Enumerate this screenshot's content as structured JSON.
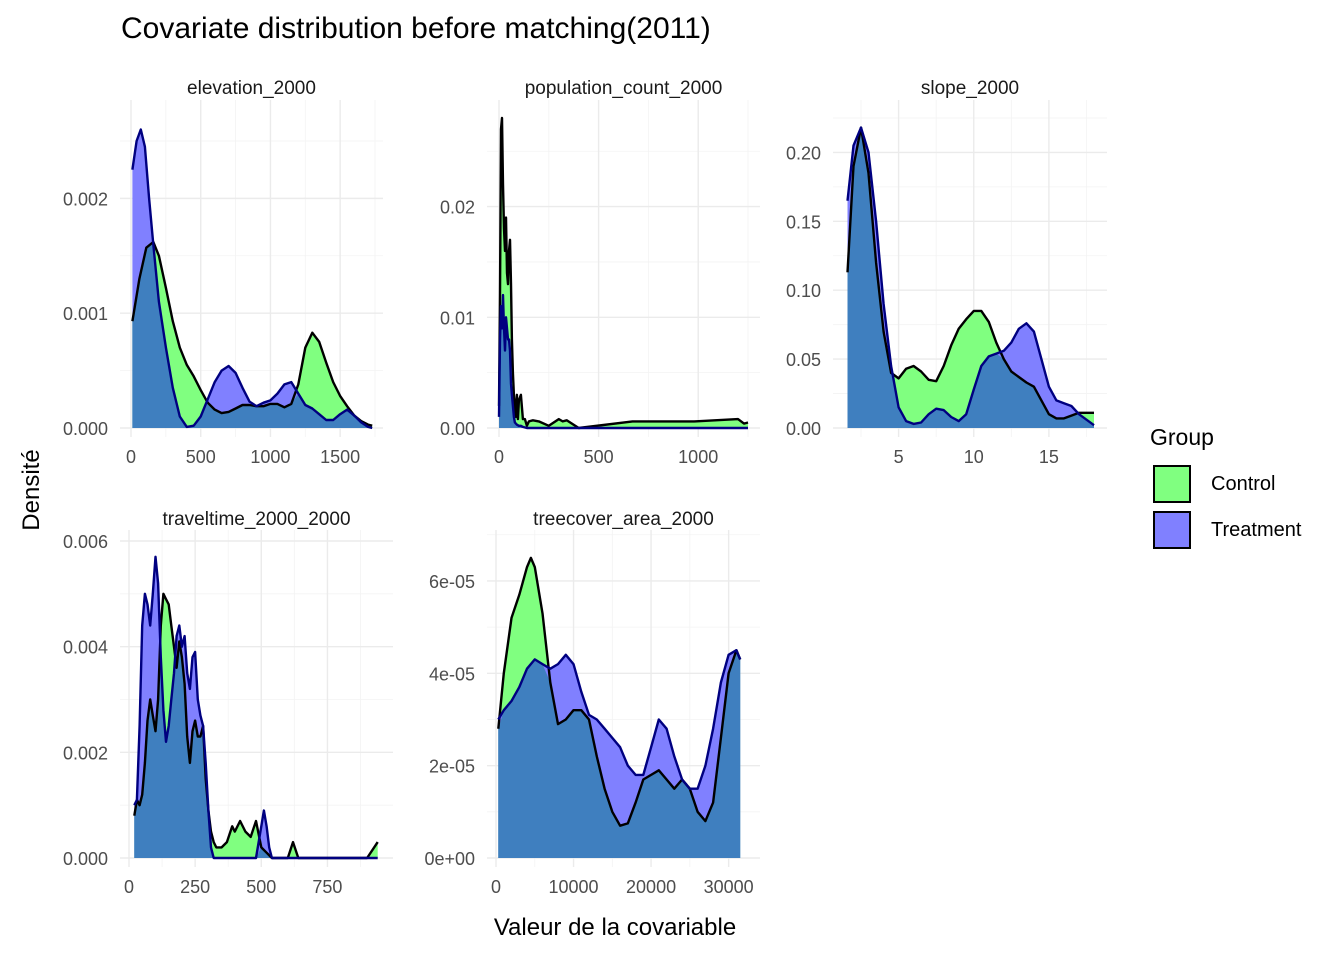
{
  "chart_data": {
    "type": "area",
    "title": "Covariate distribution before matching(2011)",
    "xlabel": "Valeur de la covariable",
    "ylabel": "Densité",
    "legend": {
      "title": "Group",
      "placement": "right",
      "entries": [
        {
          "name": "Control",
          "color": "#80ff80"
        },
        {
          "name": "Treatment",
          "color": "#8080ff"
        }
      ]
    },
    "overlap_color": "#3f7fbf",
    "grid": true,
    "panels": [
      {
        "name": "elevation_2000",
        "xlim": [
          0,
          1750
        ],
        "ylim": [
          0,
          0.0027
        ],
        "xticks": [
          0,
          500,
          1000,
          1500
        ],
        "xtick_labels": [
          "0",
          "500",
          "1000",
          "1500"
        ],
        "yticks": [
          0,
          0.001,
          0.002
        ],
        "ytick_labels": [
          "0.000",
          "0.001",
          "0.002"
        ],
        "series": [
          {
            "name": "Control",
            "x": [
              10,
              60,
              110,
              160,
              200,
              250,
              300,
              350,
              400,
              450,
              500,
              550,
              600,
              650,
              700,
              750,
              800,
              850,
              900,
              950,
              1000,
              1050,
              1100,
              1150,
              1200,
              1250,
              1300,
              1350,
              1400,
              1450,
              1500,
              1550,
              1600,
              1650,
              1700,
              1730
            ],
            "y": [
              0.00093,
              0.0013,
              0.00157,
              0.00162,
              0.0015,
              0.00122,
              0.00093,
              0.0007,
              0.00055,
              0.00045,
              0.00033,
              0.00022,
              0.00016,
              0.00013,
              0.00014,
              0.00017,
              0.0002,
              0.0002,
              0.00019,
              0.00019,
              0.00021,
              0.00021,
              0.00018,
              0.00021,
              0.00038,
              0.0007,
              0.00083,
              0.00075,
              0.00057,
              0.0004,
              0.00028,
              0.00019,
              0.00011,
              6e-05,
              3e-05,
              2e-05
            ]
          },
          {
            "name": "Treatment",
            "x": [
              10,
              40,
              70,
              100,
              130,
              160,
              200,
              250,
              300,
              350,
              400,
              450,
              500,
              550,
              600,
              650,
              700,
              750,
              800,
              850,
              900,
              950,
              1000,
              1050,
              1100,
              1150,
              1200,
              1250,
              1300,
              1350,
              1400,
              1450,
              1500,
              1550,
              1600,
              1650,
              1700,
              1730
            ],
            "y": [
              0.00225,
              0.0025,
              0.0026,
              0.00245,
              0.002,
              0.0016,
              0.0011,
              0.0007,
              0.00035,
              0.0001,
              1e-05,
              2e-05,
              0.0001,
              0.00025,
              0.0004,
              0.0005,
              0.00054,
              0.00048,
              0.00035,
              0.00023,
              0.00019,
              0.00022,
              0.00024,
              0.0003,
              0.00038,
              0.0004,
              0.0003,
              0.0002,
              0.00017,
              0.00012,
              7e-05,
              7e-05,
              0.00012,
              0.00016,
              0.00011,
              5e-05,
              1e-05,
              0.0
            ]
          }
        ]
      },
      {
        "name": "population_count_2000",
        "xlim": [
          0,
          1260
        ],
        "ylim": [
          0,
          0.028
        ],
        "xticks": [
          0,
          500,
          1000
        ],
        "xtick_labels": [
          "0",
          "500",
          "1000"
        ],
        "yticks": [
          0,
          0.01,
          0.02
        ],
        "ytick_labels": [
          "0.00",
          "0.01",
          "0.02"
        ],
        "series": [
          {
            "name": "Control",
            "x": [
              0,
              5,
              10,
              15,
              20,
              25,
              30,
              35,
              40,
              45,
              50,
              55,
              60,
              65,
              70,
              75,
              80,
              85,
              90,
              95,
              100,
              110,
              120,
              130,
              140,
              150,
              170,
              200,
              250,
              300,
              320,
              340,
              400,
              670,
              980,
              1200,
              1230,
              1250
            ],
            "y": [
              0.002,
              0.012,
              0.027,
              0.028,
              0.022,
              0.018,
              0.016,
              0.019,
              0.014,
              0.013,
              0.016,
              0.017,
              0.013,
              0.008,
              0.005,
              0.003,
              0.002,
              0.001,
              0.003,
              0.0008,
              0.0025,
              0.003,
              0.0008,
              0.0008,
              0.0002,
              0.0006,
              0.0007,
              0.0006,
              0.0002,
              0.0008,
              0.0006,
              0.0007,
              0.0,
              0.0006,
              0.0006,
              0.0008,
              0.0004,
              0.0005
            ]
          },
          {
            "name": "Treatment",
            "x": [
              0,
              5,
              10,
              15,
              20,
              25,
              30,
              35,
              40,
              45,
              50,
              55,
              60,
              65,
              70,
              75,
              80,
              90,
              100,
              110,
              120,
              140,
              200,
              400,
              1250
            ],
            "y": [
              0.001,
              0.008,
              0.011,
              0.009,
              0.012,
              0.009,
              0.007,
              0.01,
              0.009,
              0.008,
              0.008,
              0.007,
              0.004,
              0.003,
              0.002,
              0.001,
              0.0005,
              0.0003,
              0.0002,
              0.0002,
              0.0001,
              0.0,
              0.0,
              0.0,
              0.0
            ]
          }
        ]
      },
      {
        "name": "slope_2000",
        "xlim": [
          1.5,
          18.2
        ],
        "ylim": [
          0,
          0.225
        ],
        "xticks": [
          5,
          10,
          15
        ],
        "xtick_labels": [
          "5",
          "10",
          "15"
        ],
        "yticks": [
          0,
          0.05,
          0.1,
          0.15,
          0.2
        ],
        "ytick_labels": [
          "0.00",
          "0.05",
          "0.10",
          "0.15",
          "0.20"
        ],
        "series": [
          {
            "name": "Control",
            "x": [
              1.6,
              2.0,
              2.5,
              3.0,
              3.5,
              4.0,
              4.5,
              5.0,
              5.5,
              6.0,
              6.5,
              7.0,
              7.5,
              8.0,
              8.5,
              9.0,
              9.5,
              10.0,
              10.5,
              11.0,
              11.5,
              12.0,
              12.5,
              13.0,
              13.5,
              14.0,
              14.5,
              15.0,
              15.5,
              16.0,
              16.5,
              17.0,
              17.5,
              18.0
            ],
            "y": [
              0.113,
              0.19,
              0.218,
              0.185,
              0.12,
              0.07,
              0.04,
              0.036,
              0.043,
              0.045,
              0.041,
              0.035,
              0.034,
              0.045,
              0.06,
              0.072,
              0.079,
              0.085,
              0.085,
              0.077,
              0.062,
              0.05,
              0.041,
              0.037,
              0.033,
              0.03,
              0.02,
              0.01,
              0.007,
              0.007,
              0.009,
              0.011,
              0.011,
              0.011
            ]
          },
          {
            "name": "Treatment",
            "x": [
              1.6,
              2.0,
              2.5,
              3.0,
              3.5,
              4.0,
              4.5,
              5.0,
              5.5,
              6.0,
              6.5,
              7.0,
              7.5,
              8.0,
              8.5,
              9.0,
              9.5,
              10.0,
              10.5,
              11.0,
              11.5,
              12.0,
              12.5,
              13.0,
              13.5,
              14.0,
              14.5,
              15.0,
              15.5,
              16.0,
              16.5,
              17.0,
              17.5,
              18.0
            ],
            "y": [
              0.165,
              0.205,
              0.218,
              0.2,
              0.15,
              0.09,
              0.045,
              0.015,
              0.005,
              0.003,
              0.004,
              0.01,
              0.014,
              0.013,
              0.008,
              0.005,
              0.01,
              0.028,
              0.045,
              0.052,
              0.054,
              0.056,
              0.062,
              0.072,
              0.076,
              0.07,
              0.05,
              0.03,
              0.02,
              0.018,
              0.016,
              0.01,
              0.006,
              0.002
            ]
          }
        ]
      },
      {
        "name": "traveltime_2000_2000",
        "xlim": [
          0,
          960
        ],
        "ylim": [
          0,
          0.006
        ],
        "xticks": [
          0,
          250,
          500,
          750
        ],
        "xtick_labels": [
          "0",
          "250",
          "500",
          "750"
        ],
        "yticks": [
          0,
          0.002,
          0.004,
          0.006
        ],
        "ytick_labels": [
          "0.000",
          "0.002",
          "0.004",
          "0.006"
        ],
        "series": [
          {
            "name": "Control",
            "x": [
              20,
              30,
              40,
              50,
              60,
              70,
              80,
              90,
              100,
              110,
              120,
              130,
              140,
              150,
              160,
              170,
              180,
              190,
              200,
              210,
              220,
              230,
              240,
              250,
              260,
              270,
              280,
              290,
              300,
              310,
              320,
              330,
              350,
              370,
              390,
              400,
              420,
              440,
              460,
              480,
              500,
              520,
              540,
              560,
              600,
              620,
              640,
              700,
              900,
              940
            ],
            "y": [
              0.0008,
              0.0011,
              0.001,
              0.0012,
              0.0018,
              0.0026,
              0.003,
              0.0027,
              0.0024,
              0.003,
              0.0044,
              0.005,
              0.0049,
              0.0048,
              0.0044,
              0.004,
              0.0036,
              0.0041,
              0.0038,
              0.0033,
              0.0023,
              0.0018,
              0.0024,
              0.0026,
              0.0023,
              0.0023,
              0.0025,
              0.0015,
              0.0009,
              0.0005,
              0.0003,
              0.0002,
              0.0002,
              0.0003,
              0.0006,
              0.0005,
              0.0007,
              0.0005,
              0.0004,
              0.0007,
              0.0002,
              0.0001,
              0.0,
              0.0,
              0.0,
              0.0003,
              0.0,
              0.0,
              0.0,
              0.0003
            ]
          },
          {
            "name": "Treatment",
            "x": [
              20,
              30,
              40,
              50,
              60,
              70,
              80,
              90,
              100,
              110,
              120,
              130,
              140,
              150,
              160,
              170,
              180,
              190,
              200,
              210,
              220,
              230,
              240,
              250,
              260,
              270,
              280,
              290,
              300,
              310,
              320,
              340,
              360,
              400,
              450,
              480,
              500,
              510,
              520,
              530,
              540,
              560,
              600,
              940
            ],
            "y": [
              0.001,
              0.0011,
              0.0025,
              0.0044,
              0.005,
              0.0048,
              0.0044,
              0.005,
              0.0057,
              0.0052,
              0.0038,
              0.0028,
              0.0022,
              0.0025,
              0.003,
              0.0035,
              0.0042,
              0.0044,
              0.004,
              0.0042,
              0.0035,
              0.0032,
              0.0038,
              0.0039,
              0.003,
              0.0027,
              0.0025,
              0.0018,
              0.0009,
              0.0002,
              0.0,
              0.0,
              0.0,
              0.0,
              0.0,
              0.0,
              0.0006,
              0.0009,
              0.0006,
              0.0002,
              0.0,
              0.0,
              0.0,
              0.0
            ]
          }
        ]
      },
      {
        "name": "treecover_area_2000",
        "xlim": [
          0,
          32500
        ],
        "ylim": [
          0,
          6.8e-05
        ],
        "xticks": [
          0,
          10000,
          20000,
          30000
        ],
        "xtick_labels": [
          "0",
          "10000",
          "20000",
          "30000"
        ],
        "yticks": [
          0,
          2e-05,
          4e-05,
          6e-05
        ],
        "ytick_labels": [
          "0e+00",
          "2e-05",
          "4e-05",
          "6e-05"
        ],
        "series": [
          {
            "name": "Control",
            "x": [
              300,
              1000,
              2000,
              3000,
              4000,
              4500,
              5000,
              6000,
              7000,
              8000,
              9000,
              10000,
              11000,
              12000,
              13000,
              14000,
              15000,
              16000,
              17000,
              18000,
              19000,
              20000,
              21000,
              22000,
              23000,
              24000,
              25000,
              26000,
              27000,
              28000,
              29000,
              30000,
              31000,
              31500
            ],
            "y": [
              2.8e-05,
              4e-05,
              5.2e-05,
              5.7e-05,
              6.3e-05,
              6.5e-05,
              6.3e-05,
              5.3e-05,
              3.8e-05,
              2.9e-05,
              3e-05,
              3.2e-05,
              3.2e-05,
              3e-05,
              2.2e-05,
              1.5e-05,
              1e-05,
              7e-06,
              7.5e-06,
              1.2e-05,
              1.7e-05,
              1.8e-05,
              1.9e-05,
              1.7e-05,
              1.5e-05,
              1.7e-05,
              1.5e-05,
              1e-05,
              8e-06,
              1.2e-05,
              2.6e-05,
              4e-05,
              4.5e-05,
              4.3e-05
            ]
          },
          {
            "name": "Treatment",
            "x": [
              300,
              1000,
              2000,
              3000,
              4000,
              5000,
              6000,
              7000,
              8000,
              9000,
              10000,
              11000,
              12000,
              13000,
              14000,
              15000,
              16000,
              17000,
              18000,
              19000,
              20000,
              21000,
              22000,
              23000,
              24000,
              25000,
              26000,
              27000,
              28000,
              29000,
              30000,
              31000,
              31500
            ],
            "y": [
              3e-05,
              3.2e-05,
              3.4e-05,
              3.7e-05,
              4.1e-05,
              4.3e-05,
              4.2e-05,
              4.1e-05,
              4.2e-05,
              4.4e-05,
              4.2e-05,
              3.6e-05,
              3.1e-05,
              3e-05,
              2.8e-05,
              2.6e-05,
              2.4e-05,
              2e-05,
              1.8e-05,
              1.8e-05,
              2.4e-05,
              3e-05,
              2.8e-05,
              2.2e-05,
              1.7e-05,
              1.5e-05,
              1.5e-05,
              2e-05,
              2.8e-05,
              3.8e-05,
              4.4e-05,
              4.5e-05,
              4.3e-05
            ]
          }
        ]
      }
    ]
  }
}
